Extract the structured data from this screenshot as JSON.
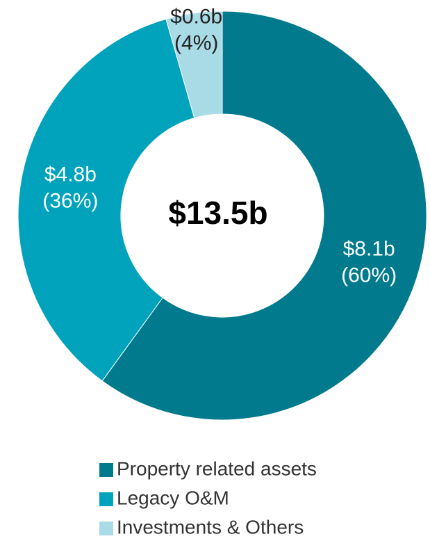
{
  "chart_data": {
    "type": "donut",
    "center_label": "$13.5b",
    "categories": [
      "Property related assets",
      "Legacy O&M",
      "Investments & Others"
    ],
    "values": [
      8.1,
      4.8,
      0.6
    ],
    "value_labels": [
      "$8.1b",
      "$4.8b",
      "$0.6b"
    ],
    "percents": [
      60,
      36,
      4
    ],
    "percent_labels": [
      "(60%)",
      "(36%)",
      "(4%)"
    ],
    "colors": [
      "#007a8c",
      "#00a3bb",
      "#a8dbe6"
    ],
    "legend": "bottom"
  }
}
